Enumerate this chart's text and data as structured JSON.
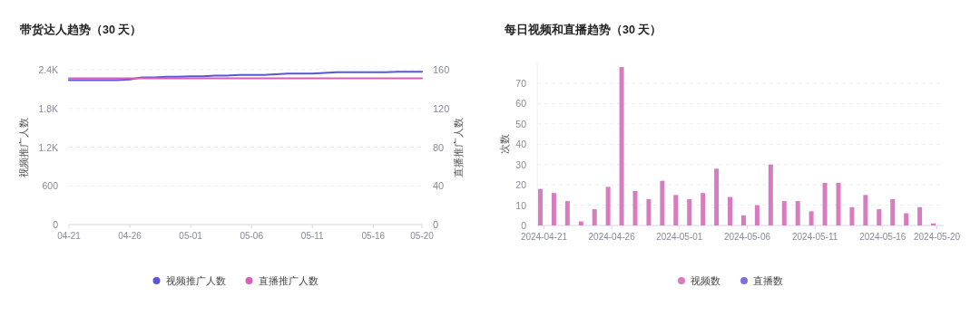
{
  "chart_data": [
    {
      "type": "line",
      "title": "带货达人趋势（30 天）",
      "ylabel": "视频推广人数",
      "y2label": "直播推广人数",
      "categories": [
        "04-21",
        null,
        null,
        null,
        null,
        "04-26",
        null,
        null,
        null,
        null,
        "05-01",
        null,
        null,
        null,
        null,
        "05-06",
        null,
        null,
        null,
        null,
        "05-11",
        null,
        null,
        null,
        null,
        "05-16",
        null,
        null,
        null,
        "05-20"
      ],
      "series": [
        {
          "name": "视频推广人数",
          "color": "#5b54d9",
          "values": [
            2240,
            2240,
            2240,
            2240,
            2240,
            2250,
            2280,
            2280,
            2290,
            2290,
            2300,
            2300,
            2310,
            2310,
            2320,
            2320,
            2320,
            2330,
            2340,
            2340,
            2340,
            2350,
            2360,
            2360,
            2360,
            2360,
            2360,
            2370,
            2370,
            2370
          ]
        },
        {
          "name": "直播推广人数",
          "color": "#d75fb5",
          "axis": "y2",
          "values": [
            151,
            151,
            151,
            151,
            151,
            151,
            151,
            151,
            151,
            151,
            151,
            151,
            151,
            151,
            151,
            151,
            151,
            151,
            151,
            151,
            151,
            151,
            151,
            151,
            151,
            151,
            151,
            151,
            151,
            151
          ]
        }
      ],
      "ylim": [
        0,
        2400
      ],
      "yticks": [
        0,
        600,
        {
          "value": 1200,
          "label": "1.2K"
        },
        {
          "value": 1800,
          "label": "1.8K"
        },
        {
          "value": 2400,
          "label": "2.4K"
        }
      ],
      "y2lim": [
        0,
        160
      ],
      "y2ticks": [
        0,
        40,
        80,
        120,
        160
      ],
      "grid": "y",
      "legend": "bottom",
      "marker": "none"
    },
    {
      "type": "bar",
      "title": "每日视频和直播趋势（30 天）",
      "ylabel": "次数",
      "categories": [
        "2024-04-21",
        null,
        null,
        null,
        null,
        "2024-04-26",
        null,
        null,
        null,
        null,
        "2024-05-01",
        null,
        null,
        null,
        null,
        "2024-05-06",
        null,
        null,
        null,
        null,
        "2024-05-11",
        null,
        null,
        null,
        null,
        "2024-05-16",
        null,
        null,
        null,
        "2024-05-20"
      ],
      "series": [
        {
          "name": "视频数",
          "color": "#d97bbf",
          "values": [
            18,
            16,
            12,
            2,
            8,
            19,
            78,
            17,
            13,
            22,
            15,
            13,
            16,
            28,
            14,
            5,
            10,
            30,
            12,
            12,
            7,
            21,
            21,
            9,
            15,
            8,
            13,
            6,
            9,
            1
          ]
        },
        {
          "name": "直播数",
          "color": "#7b6fe0",
          "values": [
            0,
            0,
            0,
            0,
            0,
            0,
            0,
            0,
            0,
            0,
            0,
            0,
            0,
            0,
            0,
            0,
            0,
            0,
            0,
            0,
            0,
            0,
            0,
            0,
            0,
            0,
            0,
            0,
            0,
            0
          ]
        }
      ],
      "ylim": [
        0,
        80
      ],
      "yticks": [
        0,
        10,
        20,
        30,
        40,
        50,
        60,
        70
      ],
      "grid": "y",
      "legend": "bottom"
    }
  ]
}
